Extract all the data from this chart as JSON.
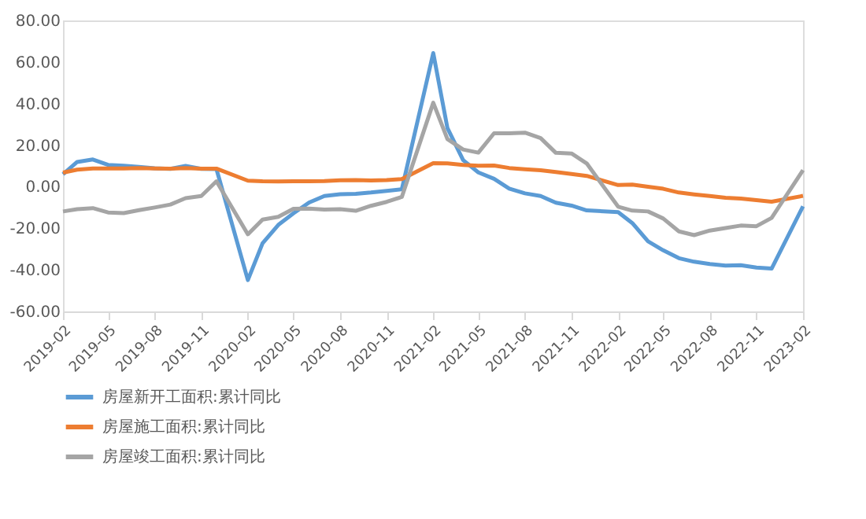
{
  "chart_data": {
    "type": "line",
    "x": [
      "2019-02",
      "2019-03",
      "2019-04",
      "2019-05",
      "2019-06",
      "2019-07",
      "2019-08",
      "2019-09",
      "2019-10",
      "2019-11",
      "2019-12",
      "2020-02",
      "2020-03",
      "2020-04",
      "2020-05",
      "2020-06",
      "2020-07",
      "2020-08",
      "2020-09",
      "2020-10",
      "2020-11",
      "2020-12",
      "2021-02",
      "2021-03",
      "2021-04",
      "2021-05",
      "2021-06",
      "2021-07",
      "2021-08",
      "2021-09",
      "2021-10",
      "2021-11",
      "2021-12",
      "2022-02",
      "2022-03",
      "2022-04",
      "2022-05",
      "2022-06",
      "2022-07",
      "2022-08",
      "2022-09",
      "2022-10",
      "2022-11",
      "2022-12",
      "2023-02"
    ],
    "series": [
      {
        "name": "房屋新开工面积:累计同比",
        "color": "#5b9bd5",
        "values": [
          6.0,
          11.9,
          13.1,
          10.5,
          10.1,
          9.5,
          8.9,
          8.6,
          10.0,
          8.6,
          8.5,
          -44.9,
          -27.2,
          -18.4,
          -12.8,
          -7.6,
          -4.5,
          -3.6,
          -3.4,
          -2.8,
          -2.0,
          -1.2,
          64.3,
          28.2,
          12.8,
          6.9,
          3.8,
          -0.9,
          -3.2,
          -4.5,
          -7.7,
          -9.1,
          -11.4,
          -12.2,
          -17.5,
          -26.3,
          -30.6,
          -34.4,
          -36.1,
          -37.2,
          -38.0,
          -37.8,
          -38.9,
          -39.4,
          -9.4
        ]
      },
      {
        "name": "房屋施工面积:累计同比",
        "color": "#ed7d31",
        "values": [
          6.8,
          8.2,
          8.8,
          8.8,
          8.8,
          9.0,
          8.8,
          8.7,
          9.0,
          8.7,
          8.7,
          2.9,
          2.6,
          2.5,
          2.6,
          2.6,
          2.7,
          3.1,
          3.2,
          3.0,
          3.2,
          3.7,
          11.3,
          11.2,
          10.5,
          10.1,
          10.2,
          9.0,
          8.4,
          7.9,
          7.1,
          6.1,
          5.2,
          0.8,
          1.0,
          0.0,
          -1.0,
          -2.8,
          -3.7,
          -4.5,
          -5.3,
          -5.7,
          -6.5,
          -7.2,
          -4.4
        ]
      },
      {
        "name": "房屋竣工面积:累计同比",
        "color": "#a5a5a5",
        "values": [
          -11.9,
          -10.8,
          -10.3,
          -12.4,
          -12.7,
          -11.3,
          -10.0,
          -8.6,
          -5.5,
          -4.5,
          2.6,
          -22.9,
          -15.8,
          -14.5,
          -10.6,
          -10.5,
          -11.0,
          -10.8,
          -11.6,
          -9.2,
          -7.3,
          -4.9,
          40.4,
          22.9,
          17.9,
          16.4,
          25.7,
          25.7,
          26.0,
          23.4,
          16.3,
          16.0,
          11.2,
          -9.6,
          -11.5,
          -11.9,
          -15.3,
          -21.5,
          -23.3,
          -21.1,
          -19.9,
          -18.7,
          -19.0,
          -15.0,
          8.0
        ]
      }
    ],
    "xlim": [
      "2019-02",
      "2023-02"
    ],
    "xticks": [
      "2019-02",
      "2019-05",
      "2019-08",
      "2019-11",
      "2020-02",
      "2020-05",
      "2020-08",
      "2020-11",
      "2021-02",
      "2021-05",
      "2021-08",
      "2021-11",
      "2022-02",
      "2022-05",
      "2022-08",
      "2022-11",
      "2023-02"
    ],
    "ylim": [
      -60,
      80
    ],
    "yticks": [
      {
        "value": -60,
        "label": "-60.00"
      },
      {
        "value": -40,
        "label": "-40.00"
      },
      {
        "value": -20,
        "label": "-20.00"
      },
      {
        "value": 0,
        "label": "0.00"
      },
      {
        "value": 20,
        "label": "20.00"
      },
      {
        "value": 40,
        "label": "40.00"
      },
      {
        "value": 60,
        "label": "60.00"
      },
      {
        "value": 80,
        "label": "80.00"
      }
    ],
    "grid": false,
    "legend": "bottom",
    "marker": "none",
    "line_style": "solid"
  }
}
